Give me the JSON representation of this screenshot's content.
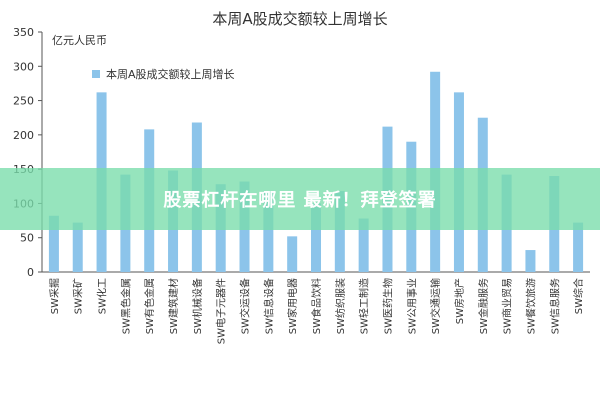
{
  "chart_data": {
    "type": "bar",
    "title": "本周A股成交额较上周增长",
    "unit_label": "亿元人民币",
    "legend": "本周A股成交额较上周增长",
    "legend_position": "top-left",
    "ylim": [
      0,
      350
    ],
    "yticks": [
      0,
      50,
      100,
      150,
      200,
      250,
      300,
      350
    ],
    "grid": false,
    "bar_color": "#8cc4ea",
    "categories": [
      "SW采掘",
      "SW采矿",
      "SW化工",
      "SW黑色金属",
      "SW有色金属",
      "SW建筑建材",
      "SW机械设备",
      "SW电子元器件",
      "SW交运设备",
      "SW信息设备",
      "SW家用电器",
      "SW食品饮料",
      "SW纺织服装",
      "SW轻工制造",
      "SW医药生物",
      "SW公用事业",
      "SW交通运输",
      "SW房地产",
      "SW金融服务",
      "SW商业贸易",
      "SW餐饮旅游",
      "SW信息服务",
      "SW综合"
    ],
    "values": [
      82,
      72,
      262,
      142,
      208,
      148,
      218,
      128,
      132,
      118,
      52,
      100,
      118,
      78,
      212,
      190,
      292,
      262,
      225,
      142,
      32,
      140,
      72
    ]
  },
  "overlay": {
    "text": "股票杠杆在哪里 最新！拜登签署",
    "color": "#78dcaa"
  }
}
